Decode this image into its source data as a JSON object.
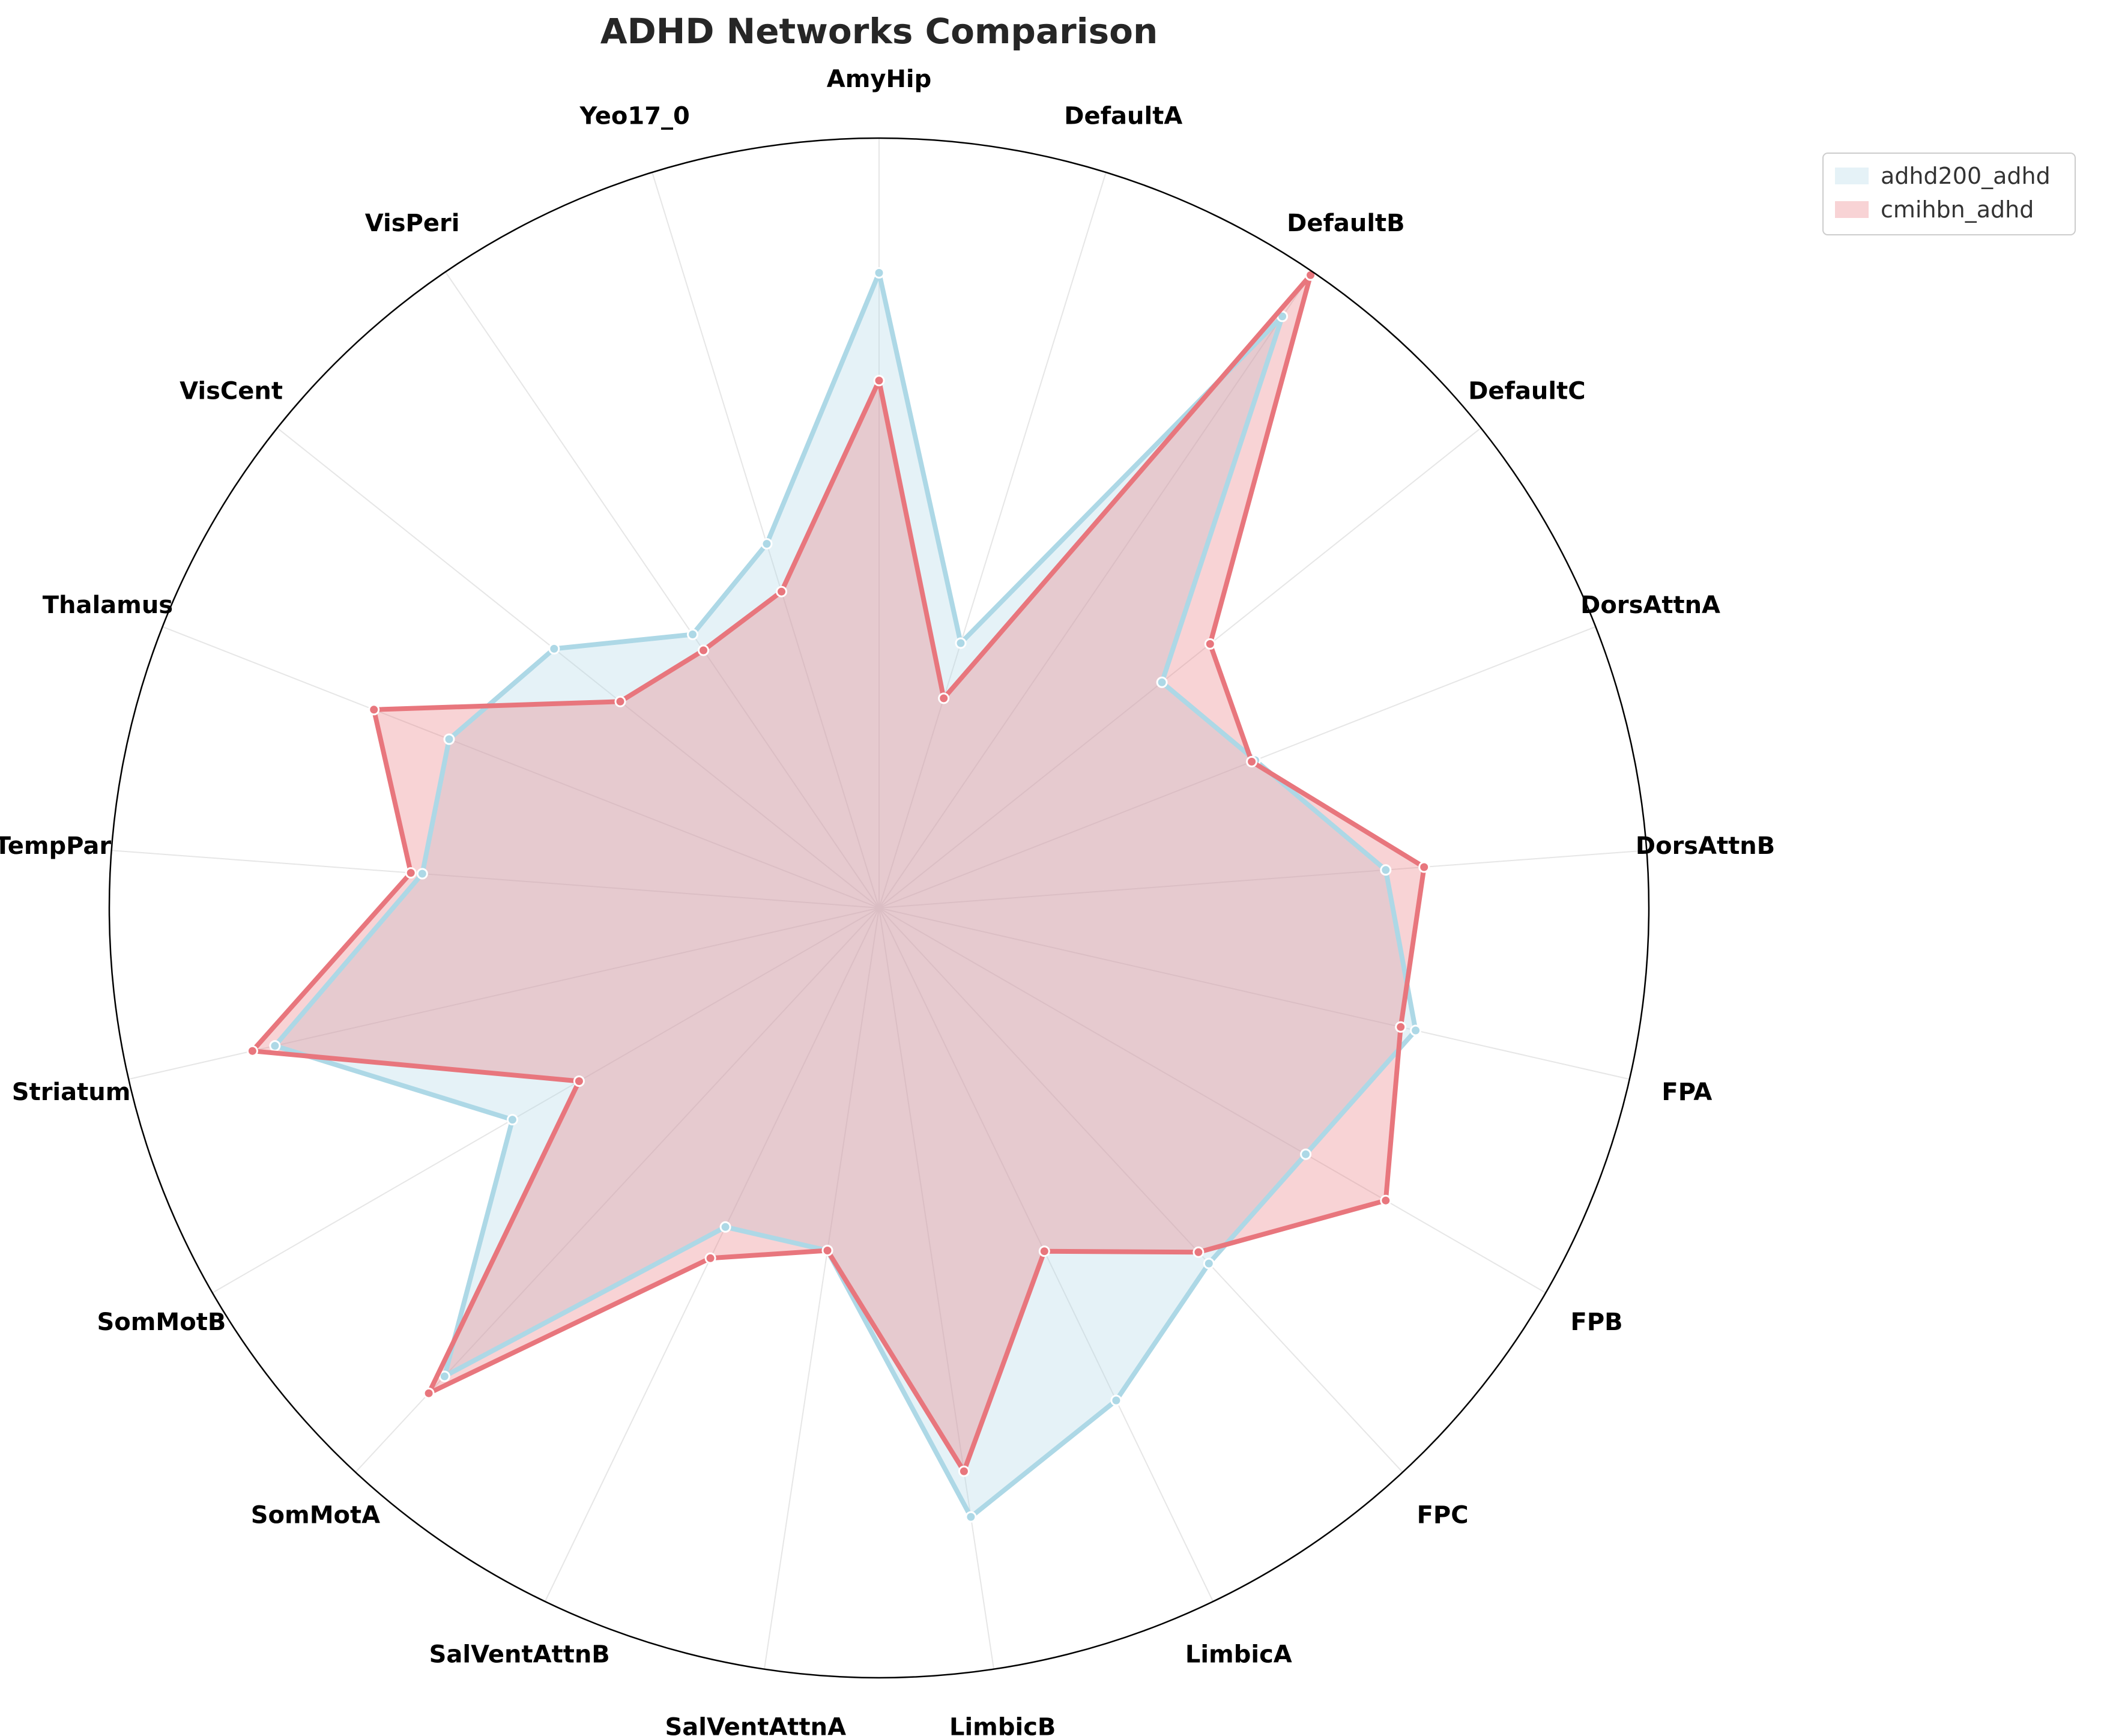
{
  "chart_data": {
    "type": "radar",
    "title": "ADHD Networks Comparison",
    "categories": [
      "AmyHip",
      "DefaultA",
      "DefaultB",
      "DefaultC",
      "DorsAttnA",
      "DorsAttnB",
      "FPA",
      "FPB",
      "FPC",
      "LimbicA",
      "LimbicB",
      "SalVentAttnA",
      "SalVentAttnB",
      "SomMotA",
      "SomMotB",
      "Striatum",
      "TempPar",
      "Thalamus",
      "VisCent",
      "VisPeri",
      "Yeo17_0"
    ],
    "rlim": [
      0,
      1
    ],
    "grid": true,
    "legend_position": "top-right",
    "series": [
      {
        "name": "adhd200_adhd",
        "color": "#ADD8E6",
        "values": [
          0.825,
          0.36,
          0.93,
          0.47,
          0.525,
          0.66,
          0.715,
          0.64,
          0.63,
          0.71,
          0.8,
          0.45,
          0.46,
          0.83,
          0.55,
          0.805,
          0.595,
          0.6,
          0.54,
          0.43,
          0.495
        ]
      },
      {
        "name": "cmihbn_adhd",
        "color": "#E8767D",
        "values": [
          0.685,
          0.285,
          0.995,
          0.55,
          0.52,
          0.71,
          0.695,
          0.76,
          0.61,
          0.495,
          0.74,
          0.45,
          0.505,
          0.86,
          0.45,
          0.835,
          0.61,
          0.705,
          0.43,
          0.405,
          0.43
        ]
      }
    ]
  }
}
